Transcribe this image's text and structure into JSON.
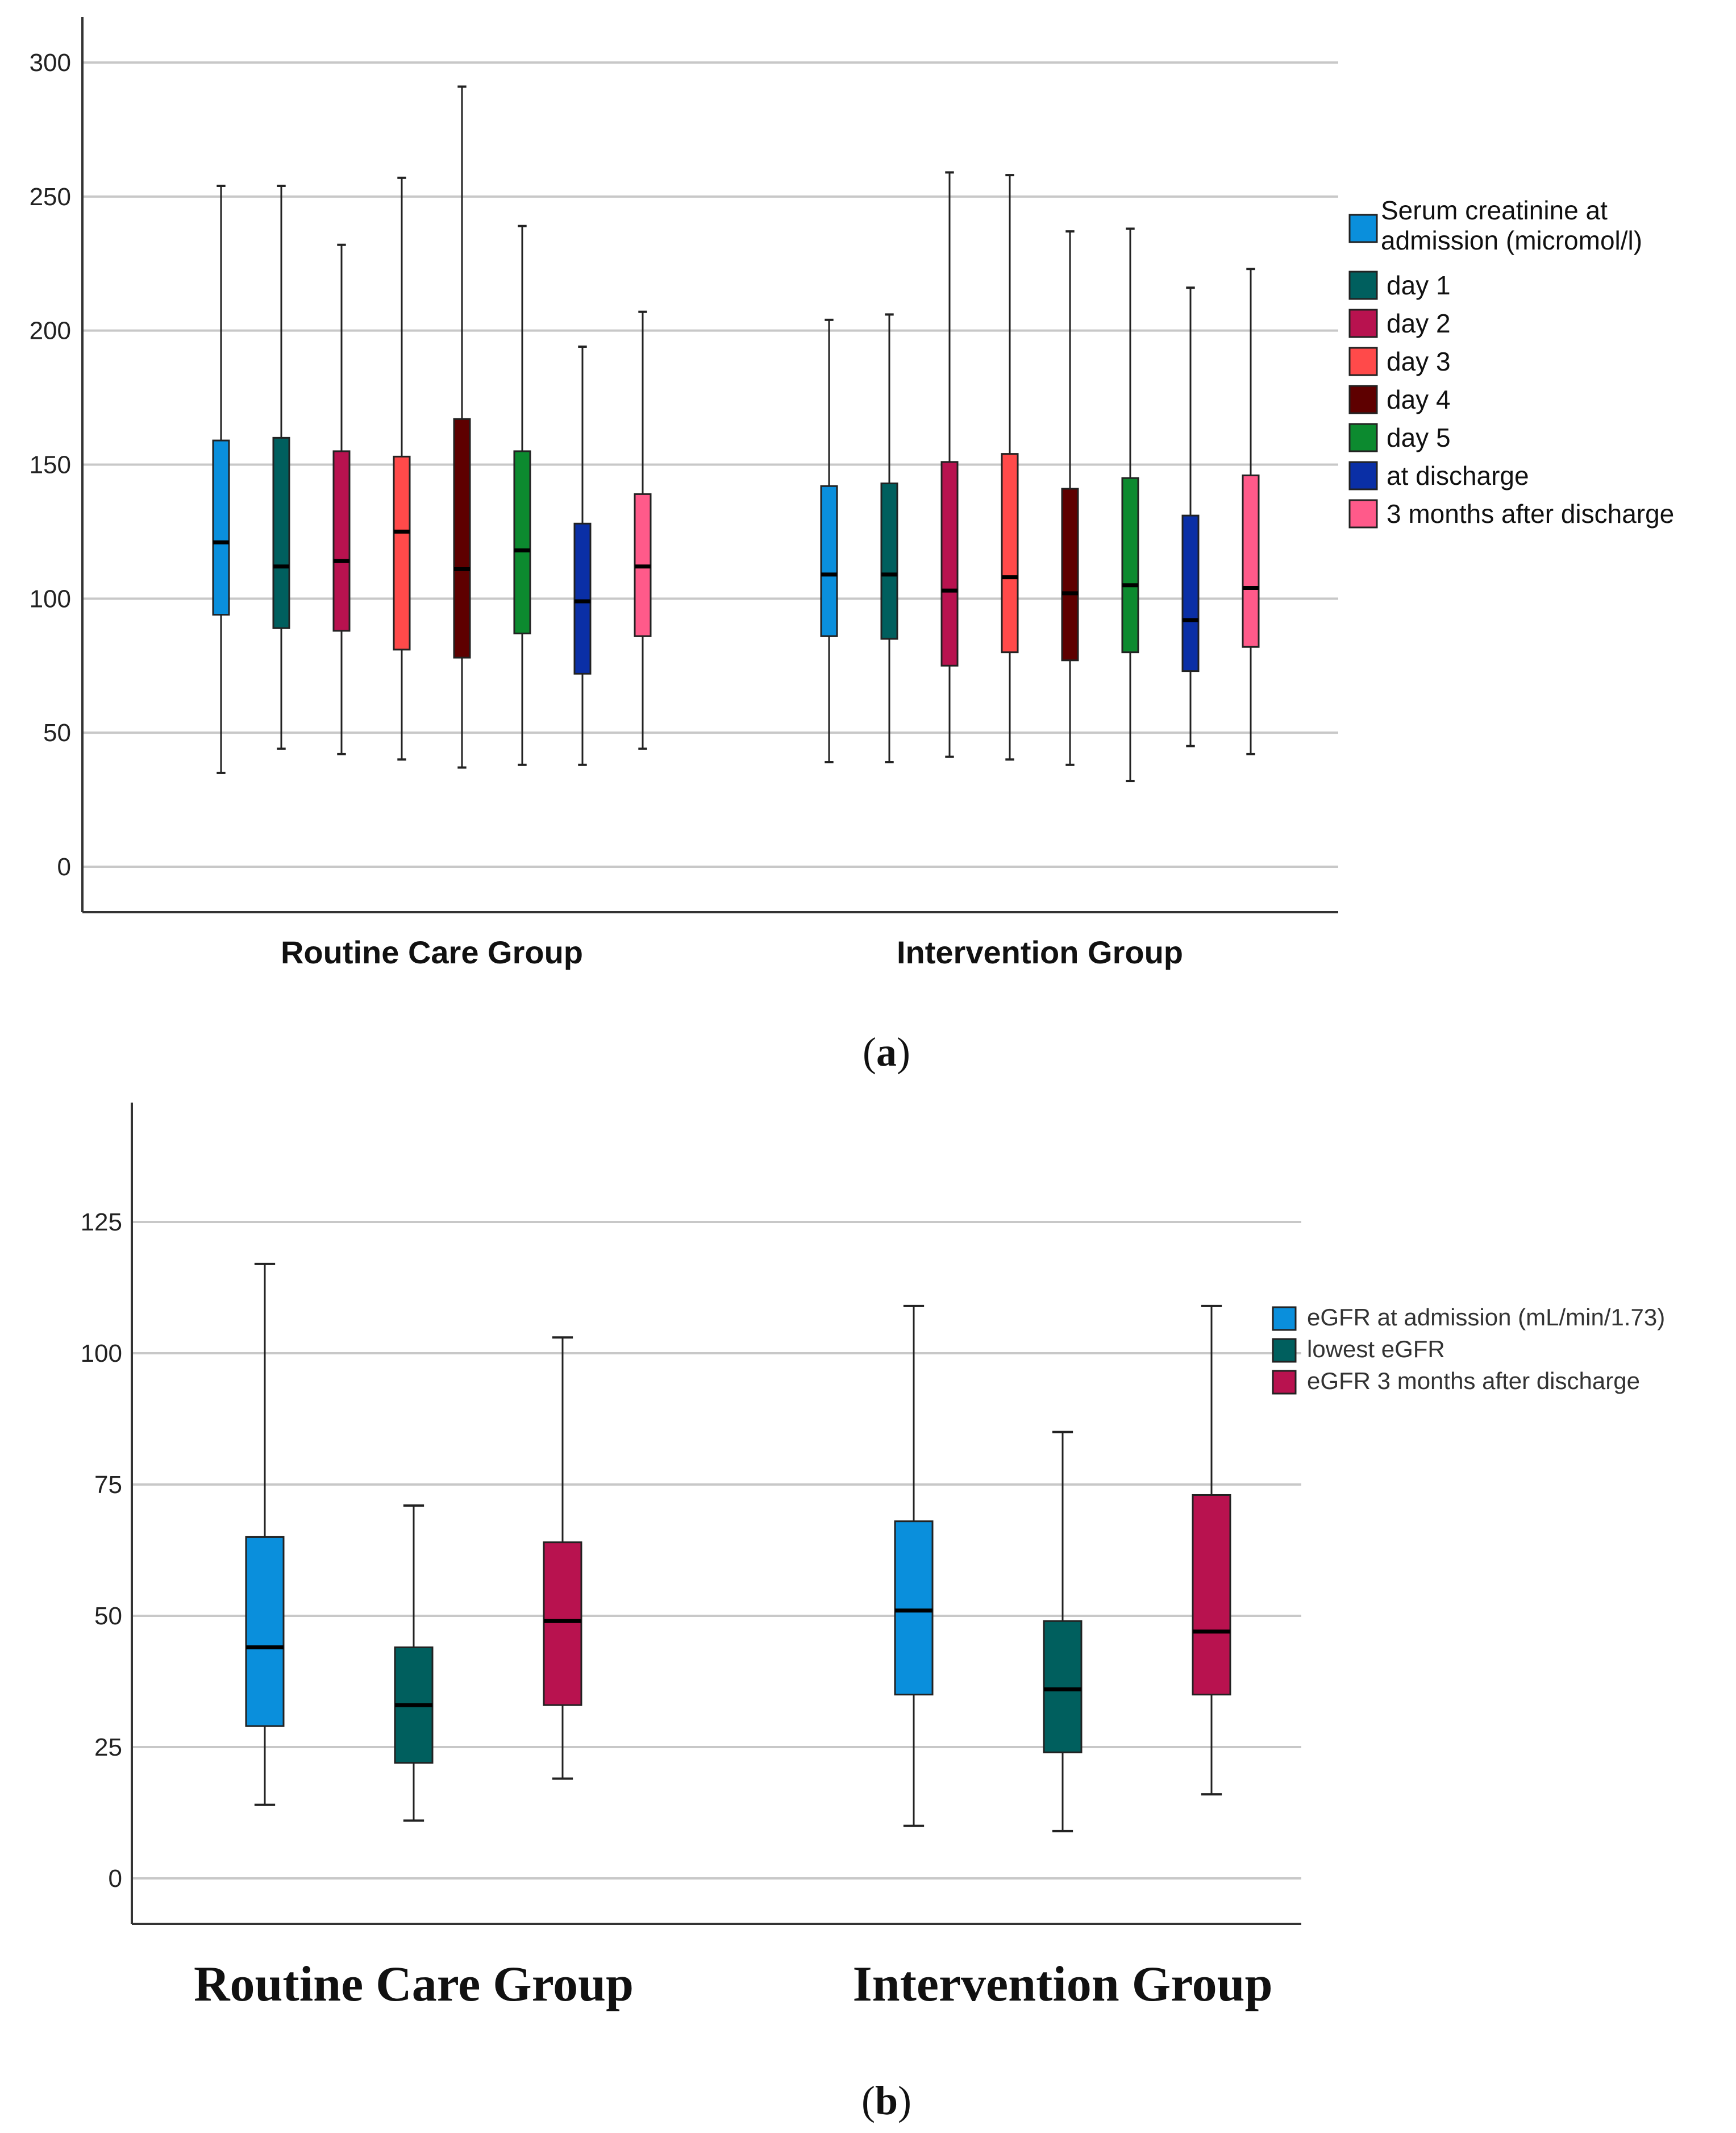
{
  "chart_data": [
    {
      "type": "boxplot",
      "panel_label": "a",
      "categories": [
        "Routine Care Group",
        "Intervention Group"
      ],
      "yticks": [
        0,
        50,
        100,
        150,
        200,
        250,
        300
      ],
      "ylim": [
        -17,
        315
      ],
      "grid": true,
      "legend_position": "right",
      "series": [
        {
          "name": "Serum creatinine at admission (micromol/l)",
          "name_lines": [
            "Serum creatinine at",
            "admission (micromol/l)"
          ],
          "color": "#0a8fdc",
          "boxes": [
            {
              "min": 35,
              "q1": 94,
              "median": 121,
              "q3": 159,
              "max": 254
            },
            {
              "min": 39,
              "q1": 86,
              "median": 109,
              "q3": 142,
              "max": 204
            }
          ]
        },
        {
          "name": "day 1",
          "color": "#005f5e",
          "boxes": [
            {
              "min": 44,
              "q1": 89,
              "median": 112,
              "q3": 160,
              "max": 254
            },
            {
              "min": 39,
              "q1": 85,
              "median": 109,
              "q3": 143,
              "max": 206
            }
          ]
        },
        {
          "name": "day 2",
          "color": "#b8124f",
          "boxes": [
            {
              "min": 42,
              "q1": 88,
              "median": 114,
              "q3": 155,
              "max": 232
            },
            {
              "min": 41,
              "q1": 75,
              "median": 103,
              "q3": 151,
              "max": 259
            }
          ]
        },
        {
          "name": "day 3",
          "color": "#ff4a4a",
          "boxes": [
            {
              "min": 40,
              "q1": 81,
              "median": 125,
              "q3": 153,
              "max": 257
            },
            {
              "min": 40,
              "q1": 80,
              "median": 108,
              "q3": 154,
              "max": 258
            }
          ]
        },
        {
          "name": "day 4",
          "color": "#5e0000",
          "boxes": [
            {
              "min": 37,
              "q1": 78,
              "median": 111,
              "q3": 167,
              "max": 291
            },
            {
              "min": 38,
              "q1": 77,
              "median": 102,
              "q3": 141,
              "max": 237
            }
          ]
        },
        {
          "name": "day 5",
          "color": "#0c8a2f",
          "boxes": [
            {
              "min": 38,
              "q1": 87,
              "median": 118,
              "q3": 155,
              "max": 239
            },
            {
              "min": 32,
              "q1": 80,
              "median": 105,
              "q3": 145,
              "max": 238
            }
          ]
        },
        {
          "name": "at discharge",
          "color": "#0a2fa6",
          "boxes": [
            {
              "min": 38,
              "q1": 72,
              "median": 99,
              "q3": 128,
              "max": 194
            },
            {
              "min": 45,
              "q1": 73,
              "median": 92,
              "q3": 131,
              "max": 216
            }
          ]
        },
        {
          "name": "3 months after discharge",
          "color": "#ff5a8a",
          "boxes": [
            {
              "min": 44,
              "q1": 86,
              "median": 112,
              "q3": 139,
              "max": 207
            },
            {
              "min": 42,
              "q1": 82,
              "median": 104,
              "q3": 146,
              "max": 223
            }
          ]
        }
      ]
    },
    {
      "type": "boxplot",
      "panel_label": "b",
      "categories": [
        "Routine Care Group",
        "Intervention Group"
      ],
      "yticks": [
        0,
        25,
        50,
        75,
        100,
        125
      ],
      "ylim": [
        -8,
        147
      ],
      "grid": true,
      "legend_position": "right",
      "series": [
        {
          "name": "eGFR at admission (mL/min/1.73)",
          "color": "#0a8fdc",
          "boxes": [
            {
              "min": 14,
              "q1": 29,
              "median": 44,
              "q3": 65,
              "max": 117
            },
            {
              "min": 10,
              "q1": 35,
              "median": 51,
              "q3": 68,
              "max": 109
            }
          ]
        },
        {
          "name": "lowest eGFR",
          "color": "#005f5e",
          "boxes": [
            {
              "min": 11,
              "q1": 22,
              "median": 33,
              "q3": 44,
              "max": 71
            },
            {
              "min": 9,
              "q1": 24,
              "median": 36,
              "q3": 49,
              "max": 85
            }
          ]
        },
        {
          "name": "eGFR 3 months after discharge",
          "color": "#b8124f",
          "boxes": [
            {
              "min": 19,
              "q1": 33,
              "median": 49,
              "q3": 64,
              "max": 103
            },
            {
              "min": 16,
              "q1": 35,
              "median": 47,
              "q3": 73,
              "max": 109
            }
          ]
        }
      ]
    }
  ]
}
